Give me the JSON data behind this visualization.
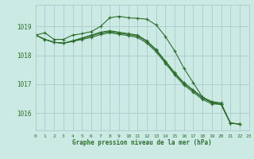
{
  "background_color": "#cceae4",
  "grid_color": "#aacccc",
  "line_color": "#2d6e2d",
  "xlabel": "Graphe pression niveau de la mer (hPa)",
  "xlim": [
    0,
    23
  ],
  "ylim": [
    1015.4,
    1019.75
  ],
  "yticks": [
    1016,
    1017,
    1018,
    1019
  ],
  "xticks": [
    0,
    1,
    2,
    3,
    4,
    5,
    6,
    7,
    8,
    9,
    10,
    11,
    12,
    13,
    14,
    15,
    16,
    17,
    18,
    19,
    20,
    21,
    22,
    23
  ],
  "series": [
    [
      1018.7,
      1018.78,
      1018.55,
      1018.55,
      1018.7,
      1018.75,
      1018.82,
      1019.0,
      1019.3,
      1019.35,
      1019.3,
      1019.28,
      1019.25,
      1019.05,
      1018.65,
      1018.15,
      1017.55,
      1017.05,
      1016.55,
      1016.35,
      1016.3,
      1015.65,
      1015.62
    ],
    [
      1018.7,
      1018.55,
      1018.45,
      1018.42,
      1018.48,
      1018.55,
      1018.62,
      1018.72,
      1018.78,
      1018.73,
      1018.68,
      1018.62,
      1018.42,
      1018.12,
      1017.72,
      1017.32,
      1016.97,
      1016.72,
      1016.47,
      1016.32,
      1016.3,
      1015.65,
      1015.62
    ],
    [
      1018.7,
      1018.55,
      1018.45,
      1018.42,
      1018.5,
      1018.58,
      1018.67,
      1018.77,
      1018.82,
      1018.77,
      1018.72,
      1018.67,
      1018.47,
      1018.17,
      1017.77,
      1017.37,
      1017.02,
      1016.77,
      1016.52,
      1016.37,
      1016.32,
      1015.65,
      1015.62
    ],
    [
      1018.7,
      1018.55,
      1018.45,
      1018.42,
      1018.5,
      1018.6,
      1018.7,
      1018.8,
      1018.85,
      1018.8,
      1018.75,
      1018.7,
      1018.5,
      1018.2,
      1017.8,
      1017.4,
      1017.05,
      1016.8,
      1016.55,
      1016.4,
      1016.35,
      1015.65,
      1015.62
    ]
  ]
}
